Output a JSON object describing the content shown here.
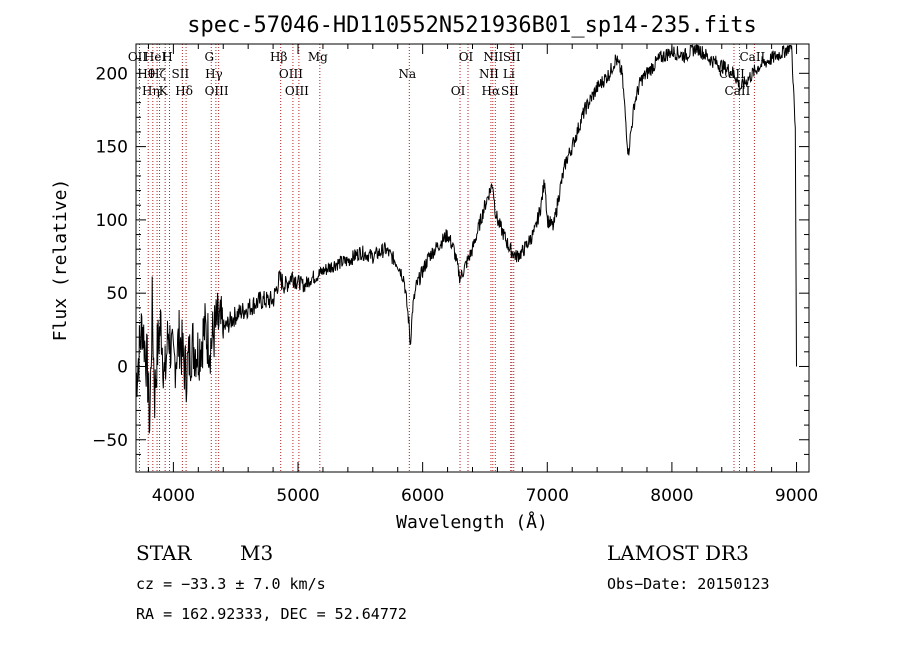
{
  "chart_data": {
    "type": "line",
    "title": "spec-57046-HD110552N521936B01_sp14-235.fits",
    "xlabel": "Wavelength (Å)",
    "ylabel": "Flux (relative)",
    "xlim": [
      3700,
      9100
    ],
    "ylim": [
      -72,
      220
    ],
    "xticks": [
      4000,
      5000,
      6000,
      7000,
      8000,
      9000
    ],
    "yticks": [
      -50,
      0,
      50,
      100,
      150,
      200
    ],
    "series": [
      {
        "name": "flux",
        "x": [
          3700,
          3750,
          3790,
          3810,
          3830,
          3850,
          3870,
          3900,
          3930,
          3960,
          4000,
          4050,
          4100,
          4150,
          4200,
          4250,
          4300,
          4350,
          4400,
          4500,
          4600,
          4700,
          4800,
          4850,
          4900,
          4950,
          5000,
          5050,
          5100,
          5150,
          5200,
          5300,
          5400,
          5500,
          5600,
          5700,
          5800,
          5850,
          5890,
          5900,
          5920,
          5950,
          6000,
          6050,
          6100,
          6150,
          6200,
          6250,
          6300,
          6350,
          6400,
          6450,
          6500,
          6540,
          6563,
          6580,
          6600,
          6650,
          6700,
          6750,
          6800,
          6850,
          6900,
          6950,
          6980,
          7000,
          7050,
          7100,
          7150,
          7200,
          7300,
          7400,
          7500,
          7550,
          7600,
          7650,
          7700,
          7750,
          7800,
          7900,
          8000,
          8100,
          8200,
          8300,
          8400,
          8500,
          8550,
          8600,
          8650,
          8700,
          8800,
          8900,
          8960,
          8990,
          9000
        ],
        "y": [
          -10,
          30,
          0,
          -40,
          40,
          -20,
          10,
          30,
          -10,
          25,
          0,
          20,
          -5,
          15,
          10,
          25,
          15,
          30,
          25,
          35,
          40,
          45,
          45,
          60,
          55,
          62,
          58,
          55,
          60,
          62,
          65,
          70,
          72,
          78,
          75,
          80,
          70,
          60,
          30,
          15,
          40,
          55,
          65,
          75,
          80,
          85,
          90,
          80,
          60,
          70,
          80,
          95,
          110,
          120,
          125,
          108,
          100,
          90,
          80,
          75,
          78,
          85,
          92,
          110,
          128,
          100,
          95,
          120,
          140,
          150,
          175,
          190,
          200,
          210,
          200,
          145,
          180,
          195,
          200,
          210,
          215,
          212,
          218,
          210,
          205,
          200,
          190,
          195,
          200,
          205,
          210,
          215,
          220,
          160,
          0
        ]
      }
    ],
    "reference_lines": [
      {
        "wavelength": 3728,
        "label": "OII"
      },
      {
        "wavelength": 3798,
        "label": "Hθ"
      },
      {
        "wavelength": 3835,
        "label": "Hη"
      },
      {
        "wavelength": 3869,
        "label": "HeI"
      },
      {
        "wavelength": 3889,
        "label": "Hζ"
      },
      {
        "wavelength": 3934,
        "label": "K"
      },
      {
        "wavelength": 3969,
        "label": "H"
      },
      {
        "wavelength": 4072,
        "label": "SII"
      },
      {
        "wavelength": 4102,
        "label": "Hδ"
      },
      {
        "wavelength": 4304,
        "label": "G"
      },
      {
        "wavelength": 4341,
        "label": "Hγ"
      },
      {
        "wavelength": 4363,
        "label": "OIII"
      },
      {
        "wavelength": 4861,
        "label": "Hβ"
      },
      {
        "wavelength": 4959,
        "label": "OIII"
      },
      {
        "wavelength": 5007,
        "label": "OIII"
      },
      {
        "wavelength": 5175,
        "label": "Mg"
      },
      {
        "wavelength": 5893,
        "label": "Na"
      },
      {
        "wavelength": 6300,
        "label": "OI"
      },
      {
        "wavelength": 6364,
        "label": "OI"
      },
      {
        "wavelength": 6548,
        "label": "NII"
      },
      {
        "wavelength": 6563,
        "label": "Hα"
      },
      {
        "wavelength": 6583,
        "label": "NII"
      },
      {
        "wavelength": 6707,
        "label": "Li"
      },
      {
        "wavelength": 6716,
        "label": "SII"
      },
      {
        "wavelength": 6731,
        "label": "SII"
      },
      {
        "wavelength": 8498,
        "label": "CaII"
      },
      {
        "wavelength": 8542,
        "label": "CaII"
      },
      {
        "wavelength": 8662,
        "label": "CaII"
      }
    ]
  },
  "info": {
    "object_type": "STAR",
    "subclass": "M3",
    "survey": "LAMOST DR3",
    "redshift": "cz = −33.3 ± 7.0 km/s",
    "obs_date": "Obs−Date: 20150123",
    "coords": "RA = 162.92333, DEC =  52.64772"
  },
  "colors": {
    "spectrum": "#000000",
    "reference_line": "#b22222",
    "axes": "#000000"
  }
}
